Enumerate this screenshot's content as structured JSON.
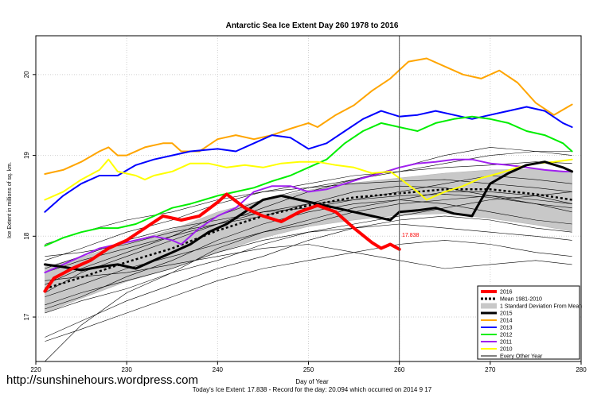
{
  "credit_url": "http://sunshinehours.wordpress.com",
  "chart_data": {
    "type": "line",
    "title": "Antarctic Sea Ice Extent Day 260 1978 to 2016",
    "xlabel": "Day of Year",
    "ylabel": "Ice Extent in millions of sq. km.",
    "xlim": [
      220,
      280
    ],
    "ylim": [
      16.45,
      20.48
    ],
    "xticks": [
      220,
      230,
      240,
      250,
      260,
      270,
      280
    ],
    "yticks": [
      17,
      18,
      19,
      20
    ],
    "vline_day": 260,
    "footer": "Today's Ice Extent: 17.838  -  Record for the day: 20.094 which occurred on 2014 9 17",
    "current_label": "17.838",
    "current_point": {
      "x": 260,
      "y": 17.838
    },
    "legend_position": "bottom-right",
    "legend": [
      {
        "label": "2016",
        "kind": "line",
        "color": "#ff0000",
        "width": 4
      },
      {
        "label": "Mean 1981-2010",
        "kind": "dashed",
        "color": "#000000",
        "width": 3
      },
      {
        "label": "1 Standard Deviation From Mean",
        "kind": "band",
        "color": "#c8c8c8",
        "width": 0
      },
      {
        "label": "2015",
        "kind": "line",
        "color": "#000000",
        "width": 3
      },
      {
        "label": "2014",
        "kind": "line",
        "color": "#ffa500",
        "width": 2
      },
      {
        "label": "2013",
        "kind": "line",
        "color": "#0000ff",
        "width": 2
      },
      {
        "label": "2012",
        "kind": "line",
        "color": "#00ee00",
        "width": 2
      },
      {
        "label": "2011",
        "kind": "line",
        "color": "#a020f0",
        "width": 2
      },
      {
        "label": "2010",
        "kind": "line",
        "color": "#ffff00",
        "width": 2
      },
      {
        "label": "Every Other Year",
        "kind": "line",
        "color": "#000000",
        "width": 1
      }
    ],
    "sd_band": {
      "x": [
        221,
        225,
        230,
        235,
        240,
        245,
        250,
        255,
        260,
        265,
        270,
        275,
        279
      ],
      "upper": [
        17.62,
        17.74,
        17.92,
        18.08,
        18.3,
        18.45,
        18.57,
        18.66,
        18.72,
        18.78,
        18.82,
        18.83,
        18.8
      ],
      "lower": [
        17.05,
        17.23,
        17.44,
        17.6,
        17.8,
        17.98,
        18.12,
        18.2,
        18.26,
        18.28,
        18.22,
        18.14,
        18.06
      ]
    },
    "mean": {
      "x": [
        221,
        225,
        230,
        235,
        240,
        245,
        250,
        255,
        260,
        265,
        270,
        275,
        279
      ],
      "y": [
        17.35,
        17.49,
        17.68,
        17.85,
        18.07,
        18.25,
        18.38,
        18.48,
        18.53,
        18.58,
        18.58,
        18.52,
        18.45
      ]
    },
    "series": [
      {
        "name": "2014",
        "color": "#ffa500",
        "width": 2,
        "x": [
          221,
          223,
          225,
          227,
          228,
          229,
          230,
          232,
          234,
          235,
          236,
          238,
          240,
          242,
          244,
          246,
          248,
          250,
          251,
          253,
          255,
          257,
          259,
          261,
          263,
          265,
          267,
          269,
          271,
          273,
          275,
          277,
          279
        ],
        "y": [
          18.77,
          18.82,
          18.92,
          19.05,
          19.1,
          19.0,
          19.0,
          19.1,
          19.15,
          19.15,
          19.05,
          19.05,
          19.2,
          19.25,
          19.2,
          19.25,
          19.33,
          19.4,
          19.35,
          19.5,
          19.62,
          19.8,
          19.95,
          20.16,
          20.2,
          20.1,
          20.0,
          19.95,
          20.05,
          19.9,
          19.65,
          19.5,
          19.63
        ]
      },
      {
        "name": "2013",
        "color": "#0000ff",
        "width": 2,
        "x": [
          221,
          223,
          225,
          227,
          229,
          231,
          233,
          235,
          237,
          240,
          242,
          244,
          246,
          248,
          250,
          252,
          254,
          256,
          258,
          260,
          262,
          264,
          266,
          268,
          270,
          272,
          274,
          276,
          278,
          279
        ],
        "y": [
          18.3,
          18.5,
          18.65,
          18.75,
          18.75,
          18.88,
          18.95,
          19.0,
          19.05,
          19.08,
          19.05,
          19.15,
          19.25,
          19.22,
          19.08,
          19.15,
          19.3,
          19.45,
          19.55,
          19.48,
          19.5,
          19.55,
          19.5,
          19.45,
          19.5,
          19.55,
          19.6,
          19.55,
          19.4,
          19.35
        ]
      },
      {
        "name": "2012",
        "color": "#00ee00",
        "width": 2,
        "x": [
          221,
          223,
          225,
          227,
          229,
          231,
          233,
          235,
          237,
          240,
          242,
          244,
          246,
          248,
          250,
          252,
          254,
          256,
          258,
          260,
          262,
          264,
          266,
          268,
          270,
          272,
          274,
          276,
          278,
          279
        ],
        "y": [
          17.88,
          17.98,
          18.05,
          18.1,
          18.1,
          18.15,
          18.25,
          18.35,
          18.4,
          18.5,
          18.55,
          18.6,
          18.68,
          18.75,
          18.85,
          18.95,
          19.15,
          19.3,
          19.4,
          19.35,
          19.3,
          19.4,
          19.45,
          19.48,
          19.45,
          19.4,
          19.3,
          19.25,
          19.15,
          19.05
        ]
      },
      {
        "name": "2011",
        "color": "#a020f0",
        "width": 2,
        "x": [
          221,
          223,
          225,
          227,
          229,
          231,
          233,
          235,
          236,
          238,
          240,
          242,
          244,
          246,
          248,
          250,
          252,
          254,
          256,
          258,
          260,
          262,
          264,
          266,
          268,
          270,
          272,
          274,
          276,
          278,
          279
        ],
        "y": [
          17.55,
          17.65,
          17.75,
          17.85,
          17.9,
          17.95,
          18.0,
          17.95,
          17.9,
          18.1,
          18.25,
          18.35,
          18.55,
          18.62,
          18.62,
          18.55,
          18.58,
          18.65,
          18.72,
          18.78,
          18.85,
          18.9,
          18.92,
          18.95,
          18.95,
          18.9,
          18.88,
          18.85,
          18.82,
          18.8,
          18.8
        ]
      },
      {
        "name": "2010",
        "color": "#ffff00",
        "width": 2,
        "x": [
          221,
          223,
          225,
          227,
          228,
          229,
          231,
          232,
          233,
          235,
          237,
          239,
          241,
          243,
          245,
          247,
          249,
          251,
          253,
          255,
          257,
          259,
          260,
          262,
          263,
          265,
          267,
          269,
          271,
          273,
          275,
          277,
          279
        ],
        "y": [
          18.45,
          18.55,
          18.7,
          18.82,
          18.95,
          18.8,
          18.75,
          18.7,
          18.75,
          18.8,
          18.9,
          18.9,
          18.85,
          18.88,
          18.85,
          18.9,
          18.92,
          18.92,
          18.88,
          18.85,
          18.78,
          18.8,
          18.72,
          18.55,
          18.45,
          18.55,
          18.62,
          18.72,
          18.78,
          18.85,
          18.9,
          18.92,
          18.95
        ]
      },
      {
        "name": "2015",
        "color": "#000000",
        "width": 3,
        "x": [
          221,
          223,
          225,
          227,
          229,
          231,
          233,
          235,
          237,
          239,
          241,
          243,
          245,
          247,
          249,
          251,
          253,
          255,
          257,
          259,
          260,
          262,
          264,
          266,
          268,
          270,
          272,
          274,
          276,
          278,
          279
        ],
        "y": [
          17.65,
          17.62,
          17.58,
          17.62,
          17.65,
          17.6,
          17.7,
          17.8,
          17.9,
          18.05,
          18.15,
          18.3,
          18.45,
          18.5,
          18.45,
          18.4,
          18.35,
          18.3,
          18.25,
          18.2,
          18.3,
          18.32,
          18.35,
          18.28,
          18.25,
          18.65,
          18.78,
          18.88,
          18.92,
          18.85,
          18.8
        ]
      },
      {
        "name": "2016",
        "color": "#ff0000",
        "width": 4,
        "x": [
          221,
          222,
          224,
          226,
          228,
          230,
          232,
          234,
          236,
          238,
          240,
          241,
          243,
          245,
          247,
          249,
          251,
          253,
          255,
          257,
          258,
          259,
          260
        ],
        "y": [
          17.32,
          17.48,
          17.6,
          17.7,
          17.85,
          17.95,
          18.1,
          18.25,
          18.2,
          18.25,
          18.42,
          18.52,
          18.35,
          18.25,
          18.18,
          18.3,
          18.38,
          18.3,
          18.1,
          17.92,
          17.85,
          17.9,
          17.838
        ]
      }
    ],
    "every_other_year": [
      {
        "x": [
          221,
          225,
          230,
          235,
          240,
          245,
          250,
          255,
          260,
          265,
          270,
          275,
          279
        ],
        "y": [
          17.7,
          17.85,
          18.05,
          18.2,
          18.4,
          18.55,
          18.65,
          18.75,
          18.8,
          18.85,
          18.88,
          18.92,
          18.9
        ]
      },
      {
        "x": [
          221,
          225,
          230,
          235,
          240,
          245,
          250,
          255,
          260,
          265,
          270,
          275,
          279
        ],
        "y": [
          17.25,
          17.4,
          17.6,
          17.75,
          17.9,
          18.05,
          18.15,
          18.3,
          18.4,
          18.45,
          18.5,
          18.45,
          18.4
        ]
      },
      {
        "x": [
          221,
          225,
          230,
          235,
          240,
          245,
          250,
          255,
          260,
          265,
          270,
          275,
          279
        ],
        "y": [
          16.45,
          16.9,
          17.3,
          17.55,
          17.85,
          18.05,
          18.2,
          18.35,
          18.45,
          18.55,
          18.55,
          18.5,
          18.4
        ]
      },
      {
        "x": [
          221,
          225,
          230,
          235,
          240,
          245,
          250,
          255,
          260,
          265,
          270,
          275,
          279
        ],
        "y": [
          16.75,
          16.95,
          17.2,
          17.4,
          17.6,
          17.75,
          17.95,
          18.1,
          18.2,
          18.25,
          18.2,
          18.1,
          18.05
        ]
      },
      {
        "x": [
          221,
          225,
          230,
          235,
          240,
          245,
          250,
          255,
          260,
          265,
          270,
          275,
          279
        ],
        "y": [
          16.7,
          16.85,
          17.05,
          17.25,
          17.45,
          17.6,
          17.7,
          17.8,
          17.9,
          17.95,
          17.9,
          17.8,
          17.75
        ]
      },
      {
        "x": [
          221,
          225,
          230,
          235,
          240,
          245,
          250,
          255,
          260,
          265,
          270,
          275,
          279
        ],
        "y": [
          17.45,
          17.5,
          17.55,
          17.65,
          17.75,
          17.85,
          17.9,
          17.8,
          17.7,
          17.6,
          17.65,
          17.7,
          17.65
        ]
      },
      {
        "x": [
          221,
          225,
          230,
          235,
          240,
          245,
          250,
          255,
          260,
          265,
          270,
          275,
          279
        ],
        "y": [
          17.9,
          18.05,
          18.2,
          18.3,
          18.45,
          18.55,
          18.6,
          18.65,
          18.68,
          18.7,
          18.65,
          18.6,
          18.55
        ]
      },
      {
        "x": [
          221,
          225,
          230,
          235,
          240,
          245,
          250,
          255,
          260,
          265,
          270,
          275,
          279
        ],
        "y": [
          17.15,
          17.3,
          17.45,
          17.6,
          17.8,
          17.95,
          18.05,
          18.15,
          18.25,
          18.35,
          18.45,
          18.5,
          18.55
        ]
      },
      {
        "x": [
          221,
          225,
          230,
          235,
          240,
          245,
          250,
          255,
          260,
          265,
          270,
          275,
          279
        ],
        "y": [
          17.3,
          17.55,
          17.75,
          17.95,
          18.15,
          18.3,
          18.4,
          18.45,
          18.55,
          18.65,
          18.75,
          18.7,
          18.65
        ]
      },
      {
        "x": [
          221,
          225,
          230,
          235,
          240,
          245,
          250,
          255,
          260,
          265,
          270,
          275,
          279
        ],
        "y": [
          17.55,
          17.7,
          17.85,
          18.0,
          18.15,
          18.35,
          18.55,
          18.7,
          18.85,
          19.0,
          19.1,
          19.05,
          19.0
        ]
      },
      {
        "x": [
          221,
          225,
          230,
          235,
          240,
          245,
          250,
          255,
          260,
          265,
          270,
          275,
          279
        ],
        "y": [
          17.05,
          17.2,
          17.35,
          17.55,
          17.7,
          17.9,
          18.05,
          18.1,
          18.15,
          18.1,
          18.05,
          18.0,
          17.95
        ]
      },
      {
        "x": [
          221,
          225,
          230,
          235,
          240,
          245,
          250,
          255,
          260,
          265,
          270,
          275,
          279
        ],
        "y": [
          17.6,
          17.75,
          17.95,
          18.1,
          18.2,
          18.3,
          18.35,
          18.45,
          18.5,
          18.52,
          18.48,
          18.4,
          18.3
        ]
      },
      {
        "x": [
          221,
          225,
          230,
          235,
          240,
          245,
          250,
          255,
          260,
          265,
          270,
          275,
          279
        ],
        "y": [
          17.4,
          17.6,
          17.8,
          18.0,
          18.25,
          18.45,
          18.6,
          18.7,
          18.8,
          18.9,
          19.0,
          19.05,
          19.05
        ]
      },
      {
        "x": [
          221,
          225,
          230,
          235,
          240,
          245,
          250,
          255,
          260,
          265,
          270,
          275,
          279
        ],
        "y": [
          17.1,
          17.25,
          17.5,
          17.7,
          17.95,
          18.15,
          18.3,
          18.4,
          18.45,
          18.4,
          18.3,
          18.2,
          18.15
        ]
      },
      {
        "x": [
          221,
          225,
          230,
          235,
          240,
          245,
          250,
          255,
          260,
          265,
          270,
          275,
          279
        ],
        "y": [
          17.75,
          17.8,
          17.9,
          18.05,
          18.15,
          18.25,
          18.4,
          18.55,
          18.62,
          18.6,
          18.5,
          18.4,
          18.35
        ]
      }
    ]
  }
}
